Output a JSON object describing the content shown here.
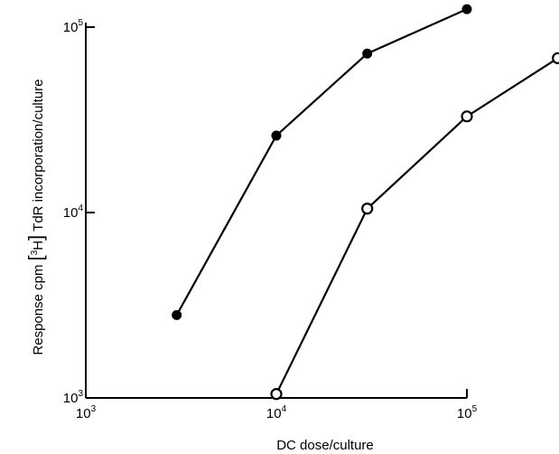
{
  "chart_data": {
    "type": "line",
    "title": "",
    "xlabel": "DC dose/culture",
    "ylabel": {
      "prefix": "Response cpm ",
      "bracket_left": "[",
      "isotope_mass": "3",
      "isotope_symbol": "H",
      "bracket_right": "]",
      "suffix": " TdR incorporation/culture"
    },
    "x_scale": "log",
    "y_scale": "log",
    "xlim": [
      1000,
      300000
    ],
    "ylim": [
      1000,
      100000
    ],
    "x_ticks": [
      {
        "value": 1000,
        "base": "10",
        "exp": "3"
      },
      {
        "value": 10000,
        "base": "10",
        "exp": "4"
      },
      {
        "value": 100000,
        "base": "10",
        "exp": "5"
      }
    ],
    "y_ticks": [
      {
        "value": 1000,
        "base": "10",
        "exp": "3"
      },
      {
        "value": 10000,
        "base": "10",
        "exp": "4"
      },
      {
        "value": 100000,
        "base": "10",
        "exp": "5"
      }
    ],
    "grid": false,
    "legend": "none",
    "series": [
      {
        "marker": "filled-circle",
        "color": "#000000",
        "x": [
          3000,
          10000,
          30000,
          100000
        ],
        "y": [
          2800,
          26000,
          72000,
          125000
        ]
      },
      {
        "marker": "open-circle",
        "color": "#000000",
        "x": [
          10000,
          30000,
          100000,
          300000
        ],
        "y": [
          1050,
          10500,
          33000,
          68000
        ]
      }
    ]
  }
}
